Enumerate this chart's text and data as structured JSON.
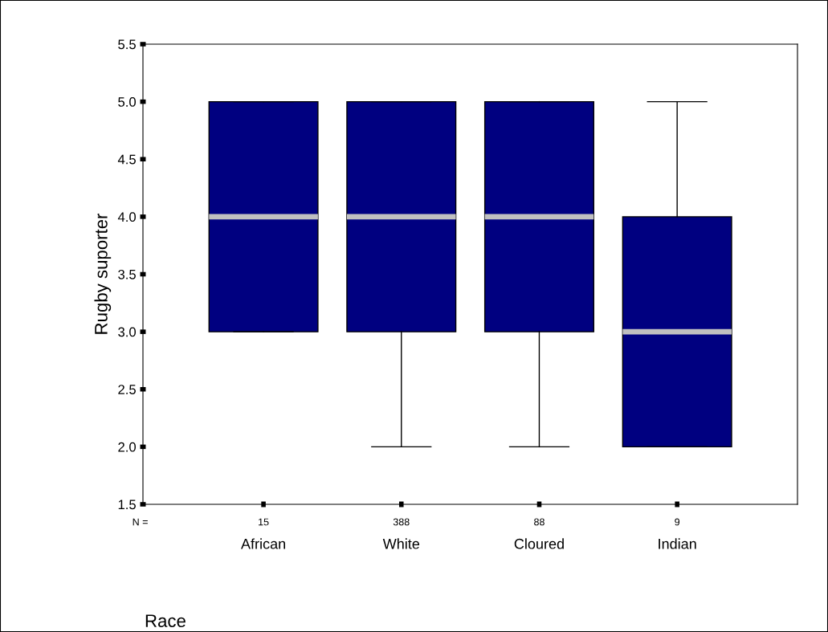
{
  "chart_data": {
    "type": "box",
    "ylabel": "Rugby suporter",
    "xlabel": "Race",
    "categories": [
      "African",
      "White",
      "Cloured",
      "Indian"
    ],
    "boxes": [
      {
        "low": 3,
        "q1": 3,
        "median": 4,
        "q3": 5,
        "high": 5
      },
      {
        "low": 2,
        "q1": 3,
        "median": 4,
        "q3": 5,
        "high": 5
      },
      {
        "low": 2,
        "q1": 3,
        "median": 4,
        "q3": 5,
        "high": 5
      },
      {
        "low": 2,
        "q1": 2,
        "median": 3,
        "q3": 4,
        "high": 5
      }
    ],
    "color": "#000080",
    "ylim": [
      1.5,
      5.5
    ],
    "yticks": [
      1.5,
      {
        "value": 2,
        "label": "2.0"
      },
      2.5,
      {
        "value": 3,
        "label": "3.0"
      },
      3.5,
      {
        "value": 4,
        "label": "4.0"
      },
      4.5,
      {
        "value": 5,
        "label": "5.0"
      },
      5.5
    ],
    "annotations": [
      "N =",
      "15",
      "388",
      "88",
      "9"
    ],
    "grid": false,
    "legend": false
  }
}
